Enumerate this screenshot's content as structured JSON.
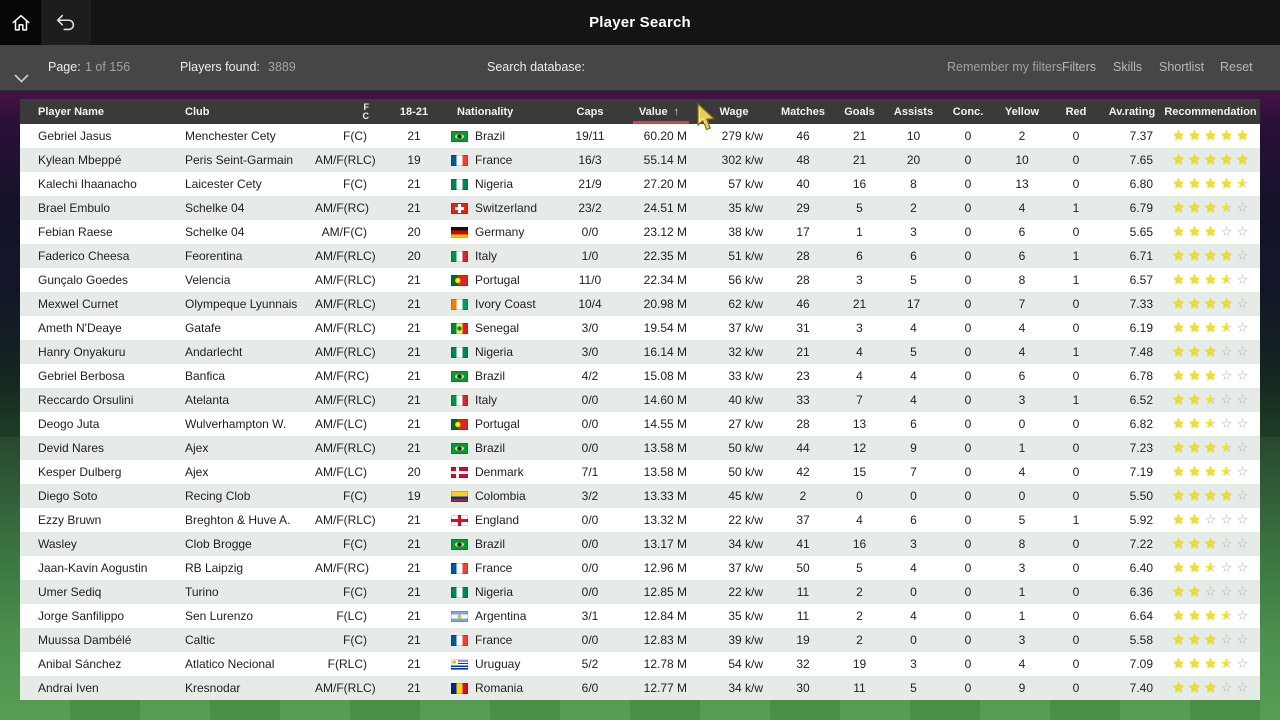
{
  "titlebar": {
    "title": "Player Search"
  },
  "toolbar": {
    "page_label": "Page:",
    "page_value": "1 of 156",
    "players_found_label": "Players found:",
    "players_found_value": "3889",
    "search_label": "Search database:",
    "search_value": "",
    "remember_label": "Remember my filters",
    "buttons": [
      "Filters",
      "Skills",
      "Shortlist",
      "Reset"
    ]
  },
  "table": {
    "columns": [
      "Player Name",
      "Club",
      "F\nC",
      "18-21",
      "Nationality",
      "Caps",
      "Value",
      "Wage",
      "Matches",
      "Goals",
      "Assists",
      "Conc.",
      "Yellow",
      "Red",
      "Av.rating",
      "Recommendation"
    ],
    "sort_column": "Value",
    "sort_indicator": "↑",
    "sort_accent_color": "#e23b4e",
    "rows": [
      {
        "name": "Gebriel Jasus",
        "club": "Menchester Cety",
        "position": "F(C)",
        "age": "21",
        "nationality": "Brazil",
        "flag": "br",
        "caps": "19/11",
        "value": "60.20 M",
        "wage": "279 k/w",
        "matches": "46",
        "goals": "21",
        "assists": "10",
        "conc": "0",
        "yellow": "2",
        "red": "0",
        "rating": "7.37",
        "stars": 5
      },
      {
        "name": "Kylean Mbeppé",
        "club": "Peris Seint-Garmain",
        "position": "AM/F(RLC)",
        "age": "19",
        "nationality": "France",
        "flag": "fr",
        "caps": "16/3",
        "value": "55.14 M",
        "wage": "302 k/w",
        "matches": "48",
        "goals": "21",
        "assists": "20",
        "conc": "0",
        "yellow": "10",
        "red": "0",
        "rating": "7.65",
        "stars": 5
      },
      {
        "name": "Kalechi Ihaanacho",
        "club": "Laicester Cety",
        "position": "F(C)",
        "age": "21",
        "nationality": "Nigeria",
        "flag": "ng",
        "caps": "21/9",
        "value": "27.20 M",
        "wage": "57 k/w",
        "matches": "40",
        "goals": "16",
        "assists": "8",
        "conc": "0",
        "yellow": "13",
        "red": "0",
        "rating": "6.80",
        "stars": 4.5
      },
      {
        "name": "Brael Embulo",
        "club": "Schelke 04",
        "position": "AM/F(RC)",
        "age": "21",
        "nationality": "Switzerland",
        "flag": "ch",
        "caps": "23/2",
        "value": "24.51 M",
        "wage": "35 k/w",
        "matches": "29",
        "goals": "5",
        "assists": "2",
        "conc": "0",
        "yellow": "4",
        "red": "1",
        "rating": "6.79",
        "stars": 3.5
      },
      {
        "name": "Febian Raese",
        "club": "Schelke 04",
        "position": "AM/F(C)",
        "age": "20",
        "nationality": "Germany",
        "flag": "de",
        "caps": "0/0",
        "value": "23.12 M",
        "wage": "38 k/w",
        "matches": "17",
        "goals": "1",
        "assists": "3",
        "conc": "0",
        "yellow": "6",
        "red": "0",
        "rating": "5.65",
        "stars": 3
      },
      {
        "name": "Faderico Cheesa",
        "club": "Feorentina",
        "position": "AM/F(RLC)",
        "age": "20",
        "nationality": "Italy",
        "flag": "it",
        "caps": "1/0",
        "value": "22.35 M",
        "wage": "51 k/w",
        "matches": "28",
        "goals": "6",
        "assists": "6",
        "conc": "0",
        "yellow": "6",
        "red": "1",
        "rating": "6.71",
        "stars": 4
      },
      {
        "name": "Gunçalo Goedes",
        "club": "Velencia",
        "position": "AM/F(RLC)",
        "age": "21",
        "nationality": "Portugal",
        "flag": "pt",
        "caps": "11/0",
        "value": "22.34 M",
        "wage": "56 k/w",
        "matches": "28",
        "goals": "3",
        "assists": "5",
        "conc": "0",
        "yellow": "8",
        "red": "1",
        "rating": "6.57",
        "stars": 3.5
      },
      {
        "name": "Mexwel Curnet",
        "club": "Olympeque Lyunnais",
        "position": "AM/F(RLC)",
        "age": "21",
        "nationality": "Ivory Coast",
        "flag": "ci",
        "caps": "10/4",
        "value": "20.98 M",
        "wage": "62 k/w",
        "matches": "46",
        "goals": "21",
        "assists": "17",
        "conc": "0",
        "yellow": "7",
        "red": "0",
        "rating": "7.33",
        "stars": 4
      },
      {
        "name": "Ameth N'Deaye",
        "club": "Gatafe",
        "position": "AM/F(RLC)",
        "age": "21",
        "nationality": "Senegal",
        "flag": "sn",
        "caps": "3/0",
        "value": "19.54 M",
        "wage": "37 k/w",
        "matches": "31",
        "goals": "3",
        "assists": "4",
        "conc": "0",
        "yellow": "4",
        "red": "0",
        "rating": "6.19",
        "stars": 3.5
      },
      {
        "name": "Hanry Onyakuru",
        "club": "Andarlecht",
        "position": "AM/F(RLC)",
        "age": "21",
        "nationality": "Nigeria",
        "flag": "ng",
        "caps": "3/0",
        "value": "16.14 M",
        "wage": "32 k/w",
        "matches": "21",
        "goals": "4",
        "assists": "5",
        "conc": "0",
        "yellow": "4",
        "red": "1",
        "rating": "7.48",
        "stars": 3
      },
      {
        "name": "Gebriel Berbosa",
        "club": "Banfica",
        "position": "AM/F(RC)",
        "age": "21",
        "nationality": "Brazil",
        "flag": "br",
        "caps": "4/2",
        "value": "15.08 M",
        "wage": "33 k/w",
        "matches": "23",
        "goals": "4",
        "assists": "4",
        "conc": "0",
        "yellow": "6",
        "red": "0",
        "rating": "6.78",
        "stars": 3
      },
      {
        "name": "Reccardo Orsulini",
        "club": "Atelanta",
        "position": "AM/F(RLC)",
        "age": "21",
        "nationality": "Italy",
        "flag": "it",
        "caps": "0/0",
        "value": "14.60 M",
        "wage": "40 k/w",
        "matches": "33",
        "goals": "7",
        "assists": "4",
        "conc": "0",
        "yellow": "3",
        "red": "1",
        "rating": "6.52",
        "stars": 2.5
      },
      {
        "name": "Deogo Juta",
        "club": "Wulverhampton W.",
        "position": "AM/F(LC)",
        "age": "21",
        "nationality": "Portugal",
        "flag": "pt",
        "caps": "0/0",
        "value": "14.55 M",
        "wage": "27 k/w",
        "matches": "28",
        "goals": "13",
        "assists": "6",
        "conc": "0",
        "yellow": "0",
        "red": "0",
        "rating": "6.82",
        "stars": 2.5
      },
      {
        "name": "Devid Nares",
        "club": "Ajex",
        "position": "AM/F(RLC)",
        "age": "21",
        "nationality": "Brazil",
        "flag": "br",
        "caps": "0/0",
        "value": "13.58 M",
        "wage": "50 k/w",
        "matches": "44",
        "goals": "12",
        "assists": "9",
        "conc": "0",
        "yellow": "1",
        "red": "0",
        "rating": "7.23",
        "stars": 3.5
      },
      {
        "name": "Kesper Dulberg",
        "club": "Ajex",
        "position": "AM/F(LC)",
        "age": "20",
        "nationality": "Denmark",
        "flag": "dk",
        "caps": "7/1",
        "value": "13.58 M",
        "wage": "50 k/w",
        "matches": "42",
        "goals": "15",
        "assists": "7",
        "conc": "0",
        "yellow": "4",
        "red": "0",
        "rating": "7.19",
        "stars": 3.5
      },
      {
        "name": "Diego Soto",
        "club": "Recing Clob",
        "position": "F(C)",
        "age": "19",
        "nationality": "Colombia",
        "flag": "co",
        "caps": "3/2",
        "value": "13.33 M",
        "wage": "45 k/w",
        "matches": "2",
        "goals": "0",
        "assists": "0",
        "conc": "0",
        "yellow": "0",
        "red": "0",
        "rating": "5.50",
        "stars": 4
      },
      {
        "name": "Ezzy Bruwn",
        "club": "Breghton & Huve A.",
        "position": "AM/F(RLC)",
        "age": "21",
        "nationality": "England",
        "flag": "en",
        "caps": "0/0",
        "value": "13.32 M",
        "wage": "22 k/w",
        "matches": "37",
        "goals": "4",
        "assists": "6",
        "conc": "0",
        "yellow": "5",
        "red": "1",
        "rating": "5.92",
        "stars": 2
      },
      {
        "name": "Wasley",
        "club": "Clob Brogge",
        "position": "F(C)",
        "age": "21",
        "nationality": "Brazil",
        "flag": "br",
        "caps": "0/0",
        "value": "13.17 M",
        "wage": "34 k/w",
        "matches": "41",
        "goals": "16",
        "assists": "3",
        "conc": "0",
        "yellow": "8",
        "red": "0",
        "rating": "7.22",
        "stars": 3
      },
      {
        "name": "Jaan-Kavin Aogustin",
        "club": "RB Laipzig",
        "position": "AM/F(RC)",
        "age": "21",
        "nationality": "France",
        "flag": "fr",
        "caps": "0/0",
        "value": "12.96 M",
        "wage": "37 k/w",
        "matches": "50",
        "goals": "5",
        "assists": "4",
        "conc": "0",
        "yellow": "3",
        "red": "0",
        "rating": "6.40",
        "stars": 2.5
      },
      {
        "name": "Umer Sediq",
        "club": "Turino",
        "position": "F(C)",
        "age": "21",
        "nationality": "Nigeria",
        "flag": "ng",
        "caps": "0/0",
        "value": "12.85 M",
        "wage": "22 k/w",
        "matches": "11",
        "goals": "2",
        "assists": "0",
        "conc": "0",
        "yellow": "1",
        "red": "0",
        "rating": "6.36",
        "stars": 2
      },
      {
        "name": "Jorge Sanfilippo",
        "club": "Sen Lurenzo",
        "position": "F(LC)",
        "age": "21",
        "nationality": "Argentina",
        "flag": "ar",
        "caps": "3/1",
        "value": "12.84 M",
        "wage": "35 k/w",
        "matches": "11",
        "goals": "2",
        "assists": "4",
        "conc": "0",
        "yellow": "1",
        "red": "0",
        "rating": "6.64",
        "stars": 3.5
      },
      {
        "name": "Muussa Dambélé",
        "club": "Caltic",
        "position": "F(C)",
        "age": "21",
        "nationality": "France",
        "flag": "fr",
        "caps": "0/0",
        "value": "12.83 M",
        "wage": "39 k/w",
        "matches": "19",
        "goals": "2",
        "assists": "0",
        "conc": "0",
        "yellow": "3",
        "red": "0",
        "rating": "5.58",
        "stars": 3
      },
      {
        "name": "Anibal Sánchez",
        "club": "Atlatico Necional",
        "position": "F(RLC)",
        "age": "21",
        "nationality": "Uruguay",
        "flag": "uy",
        "caps": "5/2",
        "value": "12.78 M",
        "wage": "54 k/w",
        "matches": "32",
        "goals": "19",
        "assists": "3",
        "conc": "0",
        "yellow": "4",
        "red": "0",
        "rating": "7.09",
        "stars": 3.5
      },
      {
        "name": "Andrai Iven",
        "club": "Kresnodar",
        "position": "AM/F(RLC)",
        "age": "21",
        "nationality": "Romania",
        "flag": "ro",
        "caps": "6/0",
        "value": "12.77 M",
        "wage": "34 k/w",
        "matches": "30",
        "goals": "11",
        "assists": "5",
        "conc": "0",
        "yellow": "9",
        "red": "0",
        "rating": "7.40",
        "stars": 3
      }
    ]
  }
}
